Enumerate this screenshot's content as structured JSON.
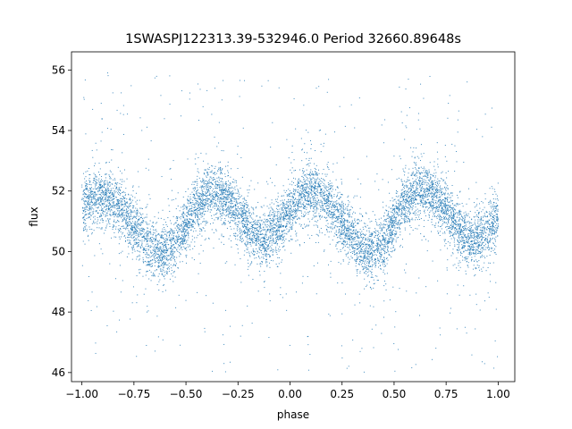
{
  "chart_data": {
    "type": "scatter",
    "title": "1SWASPJ122313.39-532946.0 Period 32660.89648s",
    "xlabel": "phase",
    "ylabel": "flux",
    "xlim": [
      -1.05,
      1.08
    ],
    "ylim": [
      45.7,
      56.6
    ],
    "xticks": [
      -1.0,
      -0.75,
      -0.5,
      -0.25,
      0.0,
      0.25,
      0.5,
      0.75,
      1.0
    ],
    "xtick_labels": [
      "−1.00",
      "−0.75",
      "−0.50",
      "−0.25",
      "0.00",
      "0.25",
      "0.50",
      "0.75",
      "1.00"
    ],
    "yticks": [
      46,
      48,
      50,
      52,
      54,
      56
    ],
    "ytick_labels": [
      "46",
      "48",
      "50",
      "52",
      "54",
      "56"
    ],
    "grid": false,
    "legend": "none",
    "marker_color": "#1f77b4",
    "series": [
      {
        "phase_range": [
          -1.0,
          1.0
        ],
        "trend_x": [
          -1.0,
          -0.9,
          -0.8,
          -0.7,
          -0.625,
          -0.55,
          -0.45,
          -0.375,
          -0.3,
          -0.2,
          -0.125,
          -0.05,
          0.05,
          0.1,
          0.2,
          0.3,
          0.375,
          0.45,
          0.55,
          0.625,
          0.7,
          0.8,
          0.87,
          0.95,
          1.0
        ],
        "trend_y": [
          51.5,
          51.9,
          51.3,
          50.4,
          49.9,
          50.3,
          51.5,
          52.0,
          51.7,
          50.8,
          50.3,
          50.9,
          51.8,
          52.0,
          51.5,
          50.5,
          49.9,
          50.3,
          51.6,
          52.1,
          51.8,
          50.9,
          50.3,
          50.7,
          51.1
        ],
        "scatter_sd": 0.45,
        "outlier_range": [
          46.0,
          56.0
        ]
      }
    ]
  }
}
